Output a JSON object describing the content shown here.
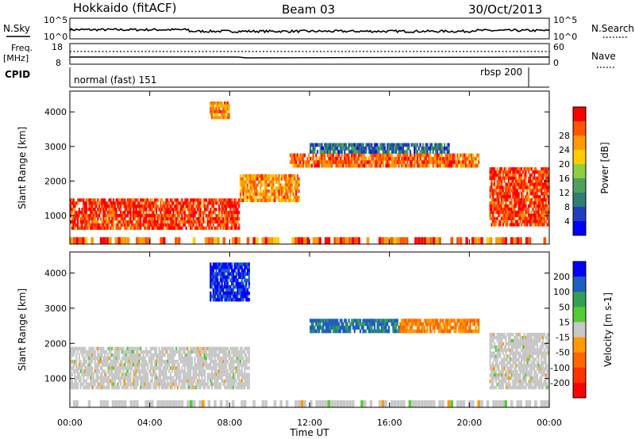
{
  "header": {
    "station": "Hokkaido (fitACF)",
    "beam": "Beam 03",
    "date": "30/Oct/2013"
  },
  "noise_panel": {
    "left_label": "N.Sky",
    "right_label": "N.Search",
    "right_legend_style": "dotted",
    "y_ticks_left": [
      "10^5",
      "10^0"
    ],
    "y_ticks_right": [
      "10^5",
      "10^0"
    ]
  },
  "freq_panel": {
    "left_label_1": "Freq.",
    "left_label_2": "[MHz]",
    "right_label": "Nave",
    "right_legend_style": "dotted",
    "y_ticks_left": [
      "18",
      "8"
    ],
    "y_ticks_right": [
      "60",
      "0"
    ]
  },
  "cpid_panel": {
    "label": "CPID",
    "mode_1": "normal (fast) 151",
    "mode_2": "rbsp 200"
  },
  "chart_data": [
    {
      "type": "heatmap",
      "parameter": "Power",
      "ylabel": "Slant Range [km]",
      "yticks": [
        "1000",
        "2000",
        "3000",
        "4000"
      ],
      "ylim": [
        180,
        4600
      ],
      "colorbar_label": "Power [dB]",
      "colorbar_ticks": [
        "4",
        "8",
        "12",
        "16",
        "20",
        "24",
        "28"
      ],
      "colorbar_range": [
        0,
        32
      ],
      "colors": [
        "#0000ff",
        "#1f3fbf",
        "#2e7f6f",
        "#4fa060",
        "#8fcf3f",
        "#ffcc00",
        "#ff9900",
        "#ff5500",
        "#ff0000"
      ],
      "features": [
        {
          "time": [
            0.0,
            8.5
          ],
          "range": [
            600,
            1500
          ],
          "level": "high",
          "value_db": 28
        },
        {
          "time": [
            8.5,
            11.5
          ],
          "range": [
            1400,
            2200
          ],
          "level": "high",
          "value_db": 24
        },
        {
          "time": [
            11.0,
            20.5
          ],
          "range": [
            2400,
            2800
          ],
          "level": "high",
          "value_db": 26
        },
        {
          "time": [
            12.0,
            19.0
          ],
          "range": [
            2800,
            3100
          ],
          "level": "mid",
          "value_db": 8
        },
        {
          "time": [
            21.0,
            24.0
          ],
          "range": [
            700,
            2400
          ],
          "level": "high",
          "value_db": 28
        },
        {
          "time": [
            7.0,
            8.0
          ],
          "range": [
            3800,
            4300
          ],
          "level": "high",
          "value_db": 24
        }
      ]
    },
    {
      "type": "heatmap",
      "parameter": "Velocity",
      "ylabel": "Slant Range [km]",
      "yticks": [
        "1000",
        "2000",
        "3000",
        "4000"
      ],
      "ylim": [
        180,
        4600
      ],
      "colorbar_label": "Velocity [m s-1]",
      "colorbar_ticks": [
        "200",
        "100",
        "50",
        "15",
        "-15",
        "-50",
        "-100",
        "-200"
      ],
      "colorbar_range": [
        -250,
        250
      ],
      "colors": [
        "#0000ff",
        "#1f5fbf",
        "#33a05a",
        "#55cc33",
        "#c8c8c8",
        "#ff9900",
        "#ff6600",
        "#ff3300",
        "#ff0000"
      ],
      "features": [
        {
          "time": [
            0.0,
            9.0
          ],
          "range": [
            700,
            1900
          ],
          "value_ms": 0
        },
        {
          "time": [
            7.0,
            9.0
          ],
          "range": [
            3200,
            4300
          ],
          "value_ms": 200
        },
        {
          "time": [
            12.0,
            16.5
          ],
          "range": [
            2300,
            2700
          ],
          "value_ms": 150
        },
        {
          "time": [
            16.5,
            20.5
          ],
          "range": [
            2300,
            2700
          ],
          "value_ms": -80
        },
        {
          "time": [
            21.0,
            24.0
          ],
          "range": [
            700,
            2300
          ],
          "value_ms": 0
        }
      ]
    }
  ],
  "x_axis": {
    "label": "Time UT",
    "ticks": [
      "00:00",
      "04:00",
      "08:00",
      "12:00",
      "16:00",
      "20:00",
      "00:00"
    ],
    "range_hours": [
      0,
      24
    ]
  }
}
